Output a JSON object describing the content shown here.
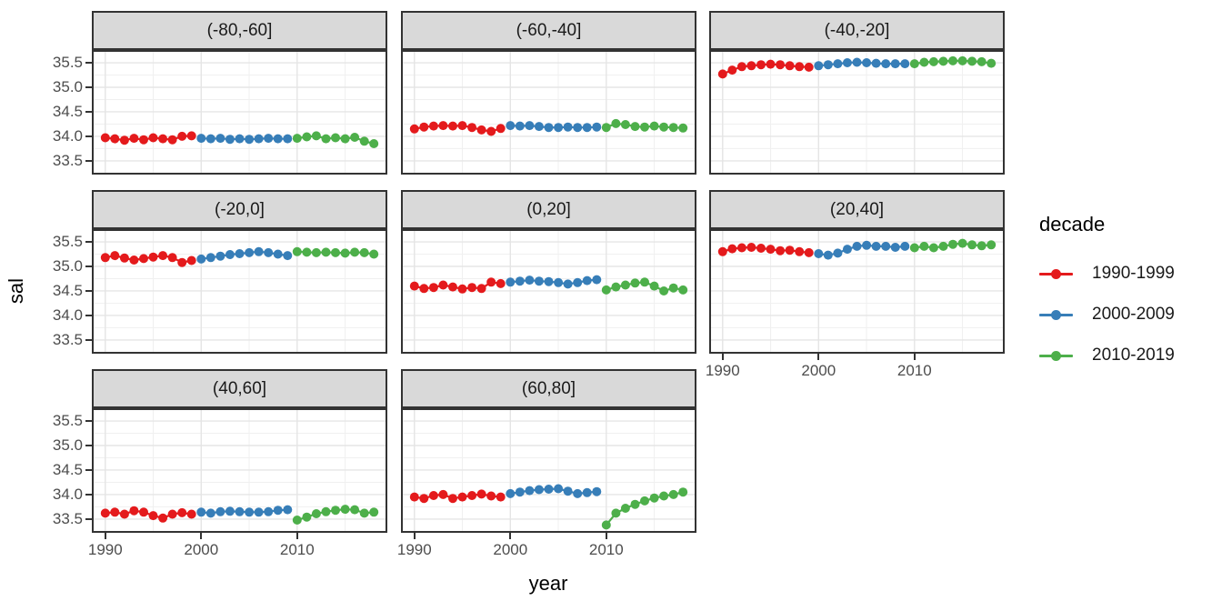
{
  "colors": {
    "background": "#ffffff",
    "strip_fill": "#D9D9D9",
    "panel_border": "#333333",
    "grid_major": "#E5E5E5",
    "grid_minor": "#F0F0F0",
    "tick_mark": "#333333",
    "tick_label": "#4D4D4D"
  },
  "chart_data": {
    "type": "line",
    "title": "",
    "xlabel": "year",
    "ylabel": "sal",
    "grid": true,
    "x_ticks": [
      1990,
      2000,
      2010
    ],
    "x_minor": [
      1995,
      2005,
      2015
    ],
    "y_ticks": [
      33.5,
      34.0,
      34.5,
      35.0,
      35.5
    ],
    "y_minor": [
      33.25,
      33.75,
      34.25,
      34.75,
      35.25,
      35.75
    ],
    "xlim": [
      1988.6,
      2019.4
    ],
    "ylim": [
      33.22,
      35.76
    ],
    "years": [
      1990,
      1991,
      1992,
      1993,
      1994,
      1995,
      1996,
      1997,
      1998,
      1999,
      2000,
      2001,
      2002,
      2003,
      2004,
      2005,
      2006,
      2007,
      2008,
      2009,
      2010,
      2011,
      2012,
      2013,
      2014,
      2015,
      2016,
      2017,
      2018
    ],
    "legend": {
      "title": "decade",
      "position": "right",
      "entries": [
        {
          "label": "1990-1999",
          "color": "#E41A1C",
          "from": 1990,
          "to": 1999
        },
        {
          "label": "2000-2009",
          "color": "#377EB8",
          "from": 2000,
          "to": 2009
        },
        {
          "label": "2010-2019",
          "color": "#4DAF4A",
          "from": 2010,
          "to": 2019
        }
      ]
    },
    "facets": [
      {
        "label": "(-80,-60]",
        "values": [
          33.97,
          33.95,
          33.92,
          33.96,
          33.93,
          33.97,
          33.95,
          33.93,
          34.0,
          34.01,
          33.96,
          33.95,
          33.96,
          33.94,
          33.95,
          33.94,
          33.95,
          33.96,
          33.95,
          33.95,
          33.96,
          33.99,
          34.01,
          33.95,
          33.97,
          33.95,
          33.98,
          33.9,
          33.85
        ]
      },
      {
        "label": "(-60,-40]",
        "values": [
          34.15,
          34.19,
          34.21,
          34.22,
          34.21,
          34.22,
          34.18,
          34.13,
          34.1,
          34.16,
          34.22,
          34.21,
          34.22,
          34.2,
          34.18,
          34.18,
          34.19,
          34.18,
          34.18,
          34.19,
          34.18,
          34.26,
          34.24,
          34.2,
          34.19,
          34.21,
          34.19,
          34.18,
          34.17
        ]
      },
      {
        "label": "(-40,-20]",
        "values": [
          35.27,
          35.35,
          35.42,
          35.44,
          35.46,
          35.47,
          35.46,
          35.44,
          35.42,
          35.41,
          35.44,
          35.46,
          35.48,
          35.5,
          35.51,
          35.5,
          35.49,
          35.48,
          35.48,
          35.48,
          35.48,
          35.51,
          35.52,
          35.53,
          35.54,
          35.54,
          35.53,
          35.52,
          35.49
        ]
      },
      {
        "label": "(-20,0]",
        "values": [
          35.18,
          35.22,
          35.17,
          35.13,
          35.16,
          35.19,
          35.22,
          35.18,
          35.08,
          35.12,
          35.15,
          35.18,
          35.21,
          35.24,
          35.26,
          35.28,
          35.3,
          35.28,
          35.25,
          35.22,
          35.3,
          35.29,
          35.28,
          35.29,
          35.28,
          35.27,
          35.29,
          35.28,
          35.25
        ]
      },
      {
        "label": "(0,20]",
        "values": [
          34.6,
          34.55,
          34.57,
          34.62,
          34.58,
          34.54,
          34.57,
          34.55,
          34.68,
          34.65,
          34.68,
          34.7,
          34.72,
          34.7,
          34.69,
          34.67,
          34.64,
          34.67,
          34.71,
          34.73,
          34.52,
          34.58,
          34.62,
          34.66,
          34.68,
          34.6,
          34.5,
          34.56,
          34.52
        ]
      },
      {
        "label": "(20,40]",
        "values": [
          35.3,
          35.36,
          35.38,
          35.39,
          35.37,
          35.35,
          35.32,
          35.33,
          35.3,
          35.28,
          35.26,
          35.23,
          35.27,
          35.35,
          35.41,
          35.43,
          35.41,
          35.41,
          35.39,
          35.41,
          35.38,
          35.41,
          35.38,
          35.41,
          35.45,
          35.47,
          35.44,
          35.42,
          35.44
        ]
      },
      {
        "label": "(40,60]",
        "values": [
          33.62,
          33.64,
          33.6,
          33.67,
          33.64,
          33.57,
          33.52,
          33.6,
          33.63,
          33.6,
          33.64,
          33.62,
          33.65,
          33.66,
          33.65,
          33.64,
          33.64,
          33.65,
          33.68,
          33.69,
          33.48,
          33.54,
          33.61,
          33.65,
          33.68,
          33.7,
          33.69,
          33.62,
          33.64
        ]
      },
      {
        "label": "(60,80]",
        "values": [
          33.95,
          33.92,
          33.98,
          34.0,
          33.92,
          33.95,
          33.98,
          34.01,
          33.97,
          33.95,
          34.02,
          34.05,
          34.08,
          34.1,
          34.11,
          34.12,
          34.07,
          34.02,
          34.04,
          34.06,
          33.38,
          33.62,
          33.72,
          33.8,
          33.87,
          33.93,
          33.97,
          34.0,
          34.05
        ]
      }
    ]
  }
}
